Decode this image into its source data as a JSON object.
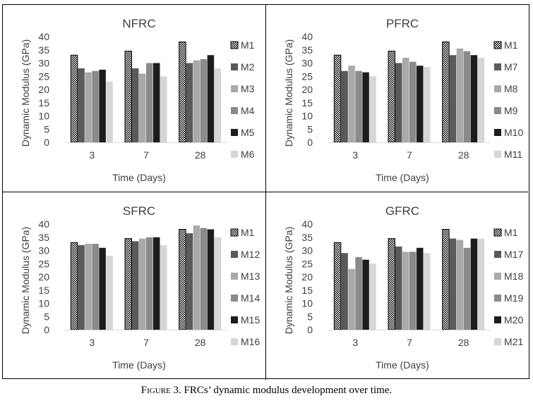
{
  "caption": {
    "figure_label": "Figure 3.",
    "text": "FRCs’ dynamic modulus development over time."
  },
  "series_colors": {
    "M1": "pattern",
    "2": "#5a5a5a",
    "3": "#a9a9a9",
    "4": "#8a8a8a",
    "5": "#1c1c1c",
    "6": "#d6d6d6"
  },
  "chart_data": [
    {
      "type": "bar",
      "title": "NFRC",
      "xlabel": "Time (Days)",
      "ylabel": "Dynamic Modulus (GPa)",
      "ylim": [
        0,
        40
      ],
      "yticks": [
        0,
        5,
        10,
        15,
        20,
        25,
        30,
        35,
        40
      ],
      "grid": false,
      "legend_position": "right",
      "categories": [
        "3",
        "7",
        "28"
      ],
      "series": [
        {
          "name": "M1",
          "values": [
            33,
            34.5,
            38
          ]
        },
        {
          "name": "M2",
          "values": [
            28,
            28,
            30
          ]
        },
        {
          "name": "M3",
          "values": [
            26.5,
            26,
            31
          ]
        },
        {
          "name": "M4",
          "values": [
            27,
            30,
            31.5
          ]
        },
        {
          "name": "M5",
          "values": [
            27.5,
            30,
            33
          ]
        },
        {
          "name": "M6",
          "values": [
            23,
            25,
            28
          ]
        }
      ]
    },
    {
      "type": "bar",
      "title": "PFRC",
      "xlabel": "Time (Days)",
      "ylabel": "Dynamic Modulus (GPa)",
      "ylim": [
        0,
        40
      ],
      "yticks": [
        0,
        5,
        10,
        15,
        20,
        25,
        30,
        35,
        40
      ],
      "grid": false,
      "legend_position": "right",
      "categories": [
        "3",
        "7",
        "28"
      ],
      "series": [
        {
          "name": "M1",
          "values": [
            33,
            34.5,
            38
          ]
        },
        {
          "name": "M7",
          "values": [
            27,
            30,
            33
          ]
        },
        {
          "name": "M8",
          "values": [
            29,
            32,
            35.5
          ]
        },
        {
          "name": "M9",
          "values": [
            27,
            30.5,
            34.5
          ]
        },
        {
          "name": "M10",
          "values": [
            26.5,
            29,
            33
          ]
        },
        {
          "name": "M11",
          "values": [
            25,
            28.5,
            32
          ]
        }
      ]
    },
    {
      "type": "bar",
      "title": "SFRC",
      "xlabel": "Time (Days)",
      "ylabel": "Dynamic Modulus (GPa)",
      "ylim": [
        0,
        40
      ],
      "yticks": [
        0,
        5,
        10,
        15,
        20,
        25,
        30,
        35,
        40
      ],
      "grid": false,
      "legend_position": "right",
      "categories": [
        "3",
        "7",
        "28"
      ],
      "series": [
        {
          "name": "M1",
          "values": [
            33,
            34.5,
            38
          ]
        },
        {
          "name": "M12",
          "values": [
            32,
            33.5,
            36.5
          ]
        },
        {
          "name": "M13",
          "values": [
            32.5,
            34.5,
            39.5
          ]
        },
        {
          "name": "M14",
          "values": [
            32.5,
            35,
            38.5
          ]
        },
        {
          "name": "M15",
          "values": [
            31,
            35,
            38
          ]
        },
        {
          "name": "M16",
          "values": [
            28,
            32,
            35
          ]
        }
      ]
    },
    {
      "type": "bar",
      "title": "GFRC",
      "xlabel": "Time (Days)",
      "ylabel": "Dynamic Modulus (GPa)",
      "ylim": [
        0,
        40
      ],
      "yticks": [
        0,
        5,
        10,
        15,
        20,
        25,
        30,
        35,
        40
      ],
      "grid": false,
      "legend_position": "right",
      "categories": [
        "3",
        "7",
        "28"
      ],
      "series": [
        {
          "name": "M1",
          "values": [
            33,
            34.5,
            38
          ]
        },
        {
          "name": "M17",
          "values": [
            29,
            31.5,
            34.5
          ]
        },
        {
          "name": "M18",
          "values": [
            23,
            29.5,
            34
          ]
        },
        {
          "name": "M19",
          "values": [
            27.5,
            29.5,
            31
          ]
        },
        {
          "name": "M20",
          "values": [
            26.5,
            31,
            34.5
          ]
        },
        {
          "name": "M21",
          "values": [
            25,
            29,
            34.5
          ]
        }
      ]
    }
  ]
}
